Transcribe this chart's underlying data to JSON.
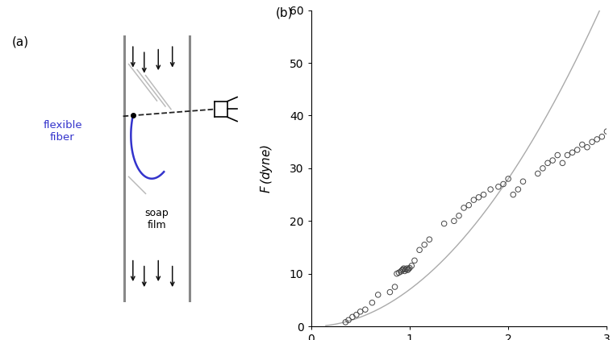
{
  "fig_width": 7.6,
  "fig_height": 4.22,
  "dpi": 100,
  "bg_color": "#ffffff",
  "panel_a_label": "(a)",
  "panel_b_label": "(b)",
  "flexible_fiber_label": "flexible\nfiber",
  "soap_film_label": "soap\nfilm",
  "fiber_color": "#3333cc",
  "wall_color": "#888888",
  "arrow_color_dark": "#111111",
  "arrow_color_light": "#888888",
  "dashed_fiber_color": "#222222",
  "plot_line_color": "#aaaaaa",
  "scatter_edge_color": "#444444",
  "xlim": [
    0,
    3
  ],
  "ylim": [
    0,
    60
  ],
  "xticks": [
    0,
    1,
    2,
    3
  ],
  "yticks": [
    0,
    10,
    20,
    30,
    40,
    50,
    60
  ],
  "curve_coeff": 7.0,
  "curve_power": 2.0,
  "scatter_x": [
    0.35,
    0.38,
    0.42,
    0.46,
    0.5,
    0.55,
    0.62,
    0.68,
    0.8,
    0.85,
    0.87,
    0.89,
    0.91,
    0.92,
    0.93,
    0.94,
    0.95,
    0.96,
    0.97,
    0.98,
    0.99,
    1.0,
    1.02,
    1.05,
    1.1,
    1.15,
    1.2,
    1.35,
    1.45,
    1.5,
    1.55,
    1.6,
    1.65,
    1.7,
    1.75,
    1.82,
    1.9,
    1.95,
    2.0,
    2.05,
    2.1,
    2.15,
    2.3,
    2.35,
    2.4,
    2.45,
    2.5,
    2.55,
    2.6,
    2.65,
    2.7,
    2.75,
    2.8,
    2.85,
    2.9,
    2.95,
    3.0
  ],
  "scatter_y": [
    0.8,
    1.2,
    1.8,
    2.2,
    2.8,
    3.2,
    4.5,
    6.0,
    6.5,
    7.5,
    10.0,
    10.2,
    10.4,
    10.6,
    10.8,
    11.0,
    10.5,
    10.8,
    11.0,
    10.7,
    10.9,
    11.1,
    11.5,
    12.5,
    14.5,
    15.5,
    16.5,
    19.5,
    20.0,
    21.0,
    22.5,
    23.0,
    24.0,
    24.5,
    25.0,
    26.0,
    26.5,
    27.0,
    28.0,
    25.0,
    26.0,
    27.5,
    29.0,
    30.0,
    31.0,
    31.5,
    32.5,
    31.0,
    32.5,
    33.0,
    33.5,
    34.5,
    34.0,
    35.0,
    35.5,
    36.0,
    37.0
  ]
}
